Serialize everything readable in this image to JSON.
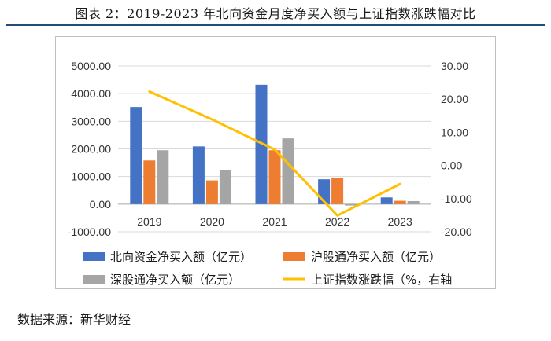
{
  "figure": {
    "title": "图表 2：2019-2023 年北向资金月度净买入额与上证指数涨跌幅对比",
    "source": "数据来源：新华财经"
  },
  "colors": {
    "north": "#4472c4",
    "sh": "#ed7d31",
    "sz": "#a5a5a5",
    "index": "#ffc000",
    "grid": "#d9d9d9",
    "axis": "#bfbfbf"
  },
  "chart_data": {
    "type": "bar",
    "categories": [
      "2019",
      "2020",
      "2021",
      "2022",
      "2023"
    ],
    "series": [
      {
        "name": "北向资金净买入额（亿元）",
        "axis": "left",
        "kind": "bar",
        "color_key": "north",
        "values": [
          3517,
          2089,
          4322,
          900,
          243
        ]
      },
      {
        "name": "沪股通净买入额（亿元）",
        "axis": "left",
        "kind": "bar",
        "color_key": "sh",
        "values": [
          1580,
          860,
          1950,
          950,
          120
        ]
      },
      {
        "name": "深股通净买入额（亿元）",
        "axis": "left",
        "kind": "bar",
        "color_key": "sz",
        "values": [
          1950,
          1230,
          2380,
          -50,
          110
        ]
      },
      {
        "name": "上证指数涨跌幅（%，右轴",
        "axis": "right",
        "kind": "line",
        "color_key": "index",
        "values": [
          22.3,
          13.9,
          4.8,
          -15.1,
          -5.6
        ]
      }
    ],
    "left_axis": {
      "min": -1000,
      "max": 5000,
      "step": 1000,
      "ticks": [
        "-1000.00",
        "0.00",
        "1000.00",
        "2000.00",
        "3000.00",
        "4000.00",
        "5000.00"
      ]
    },
    "right_axis": {
      "min": -20,
      "max": 30,
      "step": 10,
      "ticks": [
        "-20.00",
        "-10.00",
        "0.00",
        "10.00",
        "20.00",
        "30.00"
      ]
    },
    "xlabel": "",
    "ylabel": "",
    "legend_position": "bottom",
    "grid": true
  }
}
